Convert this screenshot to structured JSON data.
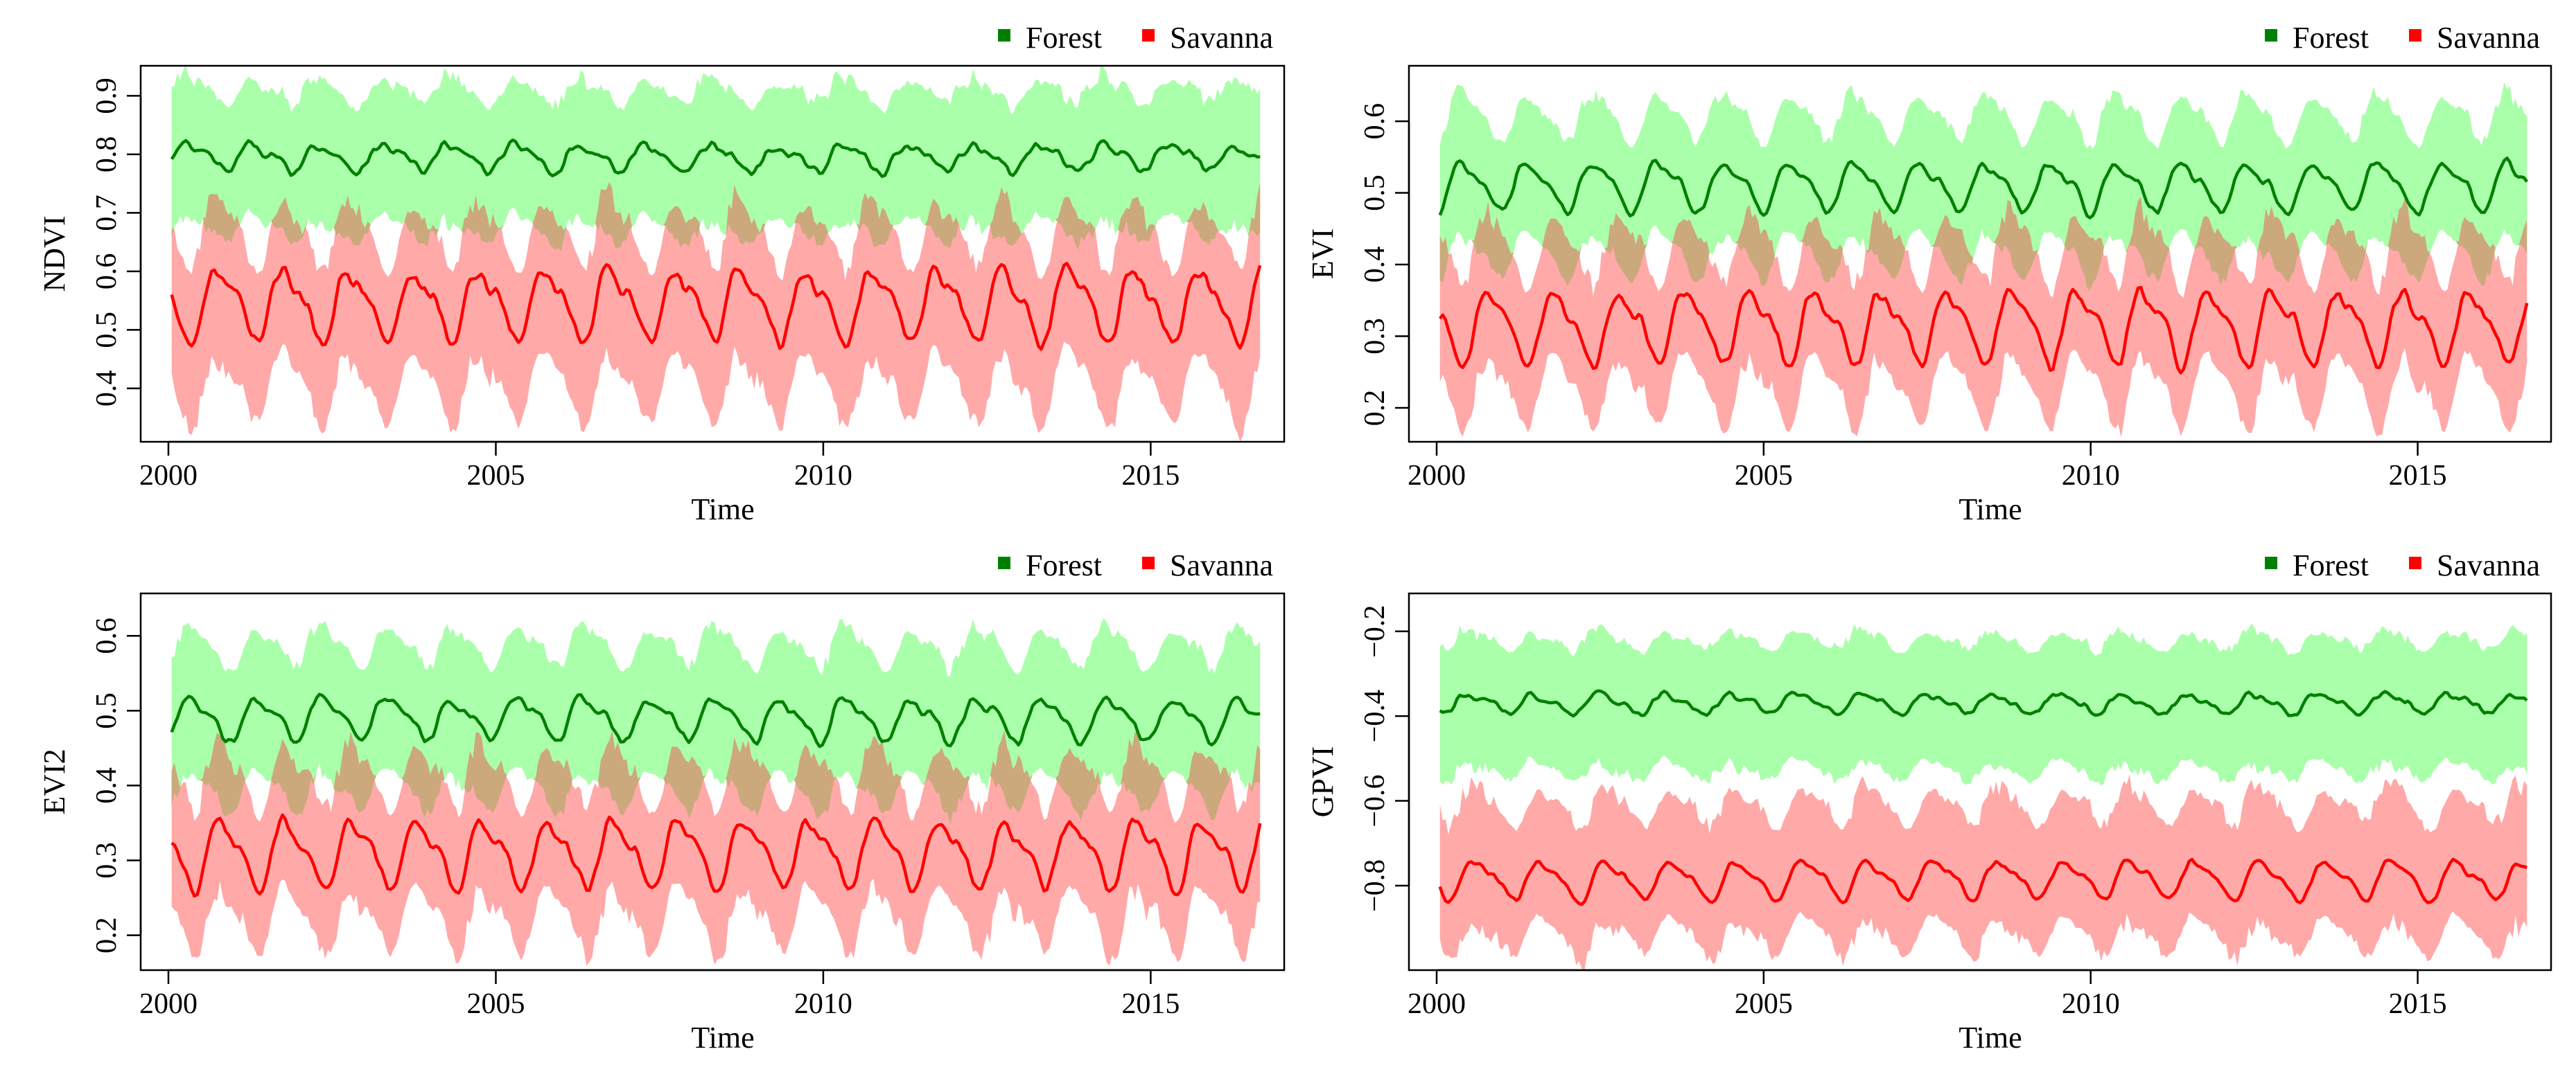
{
  "colors": {
    "forest_line": "#008000",
    "savanna_line": "#ff0000",
    "forest_band": "#aaffaa",
    "savanna_band": "#ff9a9a",
    "overlap_band": "#c8a87a",
    "frame": "#000000"
  },
  "chart_data": [
    {
      "id": "ndvi",
      "type": "line",
      "title": "",
      "xlabel": "Time",
      "ylabel": "NDVI",
      "xlim": [
        2000,
        2016.7
      ],
      "ylim": [
        0.33,
        0.93
      ],
      "xticks": [
        2000,
        2005,
        2010,
        2015
      ],
      "xtick_labels": [
        "2000",
        "2005",
        "2010",
        "2015"
      ],
      "yticks": [
        0.4,
        0.5,
        0.6,
        0.7,
        0.8,
        0.9
      ],
      "ytick_labels": [
        "0.4",
        "0.5",
        "0.6",
        "0.7",
        "0.8",
        "0.9"
      ],
      "legend": [
        "Forest",
        "Savanna"
      ],
      "legend_position": "top-right",
      "series": [
        {
          "name": "Forest",
          "color": "#008000",
          "band_color": "#aaffaa",
          "mean": 0.795,
          "amplitude": 0.02,
          "band_low": 0.115,
          "band_high": 0.105,
          "band_noise": 0.03,
          "noise": 0.01,
          "phase": 0.1
        },
        {
          "name": "Savanna",
          "color": "#ff0000",
          "band_color": "#ff9a9a",
          "mean": 0.545,
          "amplitude": 0.055,
          "band_low": 0.13,
          "band_high": 0.11,
          "band_noise": 0.04,
          "noise": 0.015,
          "phase": 0.55
        }
      ]
    },
    {
      "id": "evi",
      "type": "line",
      "title": "",
      "xlabel": "Time",
      "ylabel": "EVI",
      "xlim": [
        2000,
        2016.7
      ],
      "ylim": [
        0.17,
        0.66
      ],
      "xticks": [
        2000,
        2005,
        2010,
        2015
      ],
      "xtick_labels": [
        "2000",
        "2005",
        "2010",
        "2015"
      ],
      "yticks": [
        0.2,
        0.3,
        0.4,
        0.5,
        0.6
      ],
      "ytick_labels": [
        "0.2",
        "0.3",
        "0.4",
        "0.5",
        "0.6"
      ],
      "legend": [
        "Forest",
        "Savanna"
      ],
      "legend_position": "top-right",
      "series": [
        {
          "name": "Forest",
          "color": "#008000",
          "band_color": "#aaffaa",
          "mean": 0.51,
          "amplitude": 0.03,
          "band_low": 0.09,
          "band_high": 0.09,
          "band_noise": 0.02,
          "noise": 0.008,
          "phase": 0.2
        },
        {
          "name": "Savanna",
          "color": "#ff0000",
          "band_color": "#ff9a9a",
          "mean": 0.315,
          "amplitude": 0.045,
          "band_low": 0.08,
          "band_high": 0.1,
          "band_noise": 0.03,
          "noise": 0.01,
          "phase": 0.6
        }
      ]
    },
    {
      "id": "evi2",
      "type": "line",
      "title": "",
      "xlabel": "Time",
      "ylabel": "EVI2",
      "xlim": [
        2000,
        2016.7
      ],
      "ylim": [
        0.17,
        0.64
      ],
      "xticks": [
        2000,
        2005,
        2010,
        2015
      ],
      "xtick_labels": [
        "2000",
        "2005",
        "2010",
        "2015"
      ],
      "yticks": [
        0.2,
        0.3,
        0.4,
        0.5,
        0.6
      ],
      "ytick_labels": [
        "0.2",
        "0.3",
        "0.4",
        "0.5",
        "0.6"
      ],
      "legend": [
        "Forest",
        "Savanna"
      ],
      "legend_position": "top-right",
      "series": [
        {
          "name": "Forest",
          "color": "#008000",
          "band_color": "#aaffaa",
          "mean": 0.49,
          "amplitude": 0.025,
          "band_low": 0.09,
          "band_high": 0.09,
          "band_noise": 0.02,
          "noise": 0.008,
          "phase": 0.15
        },
        {
          "name": "Savanna",
          "color": "#ff0000",
          "band_color": "#ff9a9a",
          "mean": 0.31,
          "amplitude": 0.04,
          "band_low": 0.08,
          "band_high": 0.095,
          "band_noise": 0.03,
          "noise": 0.01,
          "phase": 0.6
        }
      ]
    },
    {
      "id": "gpvi",
      "type": "line",
      "title": "",
      "xlabel": "Time",
      "ylabel": "GPVI",
      "xlim": [
        2000,
        2016.7
      ],
      "ylim": [
        -0.97,
        -0.14
      ],
      "xticks": [
        2000,
        2005,
        2010,
        2015
      ],
      "xtick_labels": [
        "2000",
        "2005",
        "2010",
        "2015"
      ],
      "yticks": [
        -0.8,
        -0.6,
        -0.4,
        -0.2
      ],
      "ytick_labels": [
        "−0.8",
        "−0.6",
        "−0.4",
        "−0.2"
      ],
      "legend": [
        "Forest",
        "Savanna"
      ],
      "legend_position": "top-right",
      "series": [
        {
          "name": "Forest",
          "color": "#008000",
          "band_color": "#aaffaa",
          "mean": -0.37,
          "amplitude": 0.02,
          "band_low": 0.15,
          "band_high": 0.14,
          "band_noise": 0.03,
          "noise": 0.01,
          "phase": 0.3
        },
        {
          "name": "Savanna",
          "color": "#ff0000",
          "band_color": "#ff9a9a",
          "mean": -0.785,
          "amplitude": 0.04,
          "band_low": 0.12,
          "band_high": 0.16,
          "band_noise": 0.05,
          "noise": 0.01,
          "phase": 0.4
        }
      ]
    }
  ]
}
